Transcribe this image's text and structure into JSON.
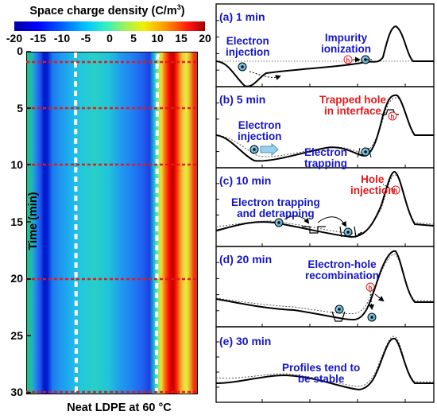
{
  "left_panel": {
    "colorbar_title": "Space charge density (C/m",
    "colorbar_title_sup": "3",
    "colorbar_title_end": ")",
    "colorbar_ticks": [
      "-20",
      "-15",
      "-10",
      "-5",
      "0",
      "5",
      "10",
      "15",
      "20"
    ],
    "y_axis_label": "Time (min)",
    "y_ticks": [
      "0",
      "5",
      "10",
      "15",
      "20",
      "25",
      "30"
    ],
    "x_caption": "Neat LDPE at 60 °C"
  },
  "right_panels": [
    {
      "label": "(a) 1 min",
      "annotations": [
        {
          "text": "Electron\ninjection",
          "color": "blue"
        },
        {
          "text": "Impurity\nionization",
          "color": "blue"
        }
      ]
    },
    {
      "label": "(b) 5 min",
      "annotations": [
        {
          "text": "Trapped hole\nin interface",
          "color": "red"
        },
        {
          "text": "Electron\ninjection",
          "color": "blue"
        },
        {
          "text": "Electron\ntrapping",
          "color": "blue"
        }
      ]
    },
    {
      "label": "(c) 10 min",
      "annotations": [
        {
          "text": "Hole\ninjection",
          "color": "red"
        },
        {
          "text": "Electron trapping\nand detrapping",
          "color": "blue"
        }
      ]
    },
    {
      "label": "(d) 20 min",
      "annotations": [
        {
          "text": "Electron-hole\nrecombination",
          "color": "blue"
        }
      ]
    },
    {
      "label": "(e) 30 min",
      "annotations": [
        {
          "text": "Profiles tend to\nbe stable",
          "color": "blue"
        }
      ]
    }
  ],
  "particle_symbols": {
    "electron": "e",
    "hole": "h"
  },
  "colors": {
    "guide_red": "#e41a1a",
    "label_blue": "#1515c8",
    "text_red": "#e41a1a"
  }
}
